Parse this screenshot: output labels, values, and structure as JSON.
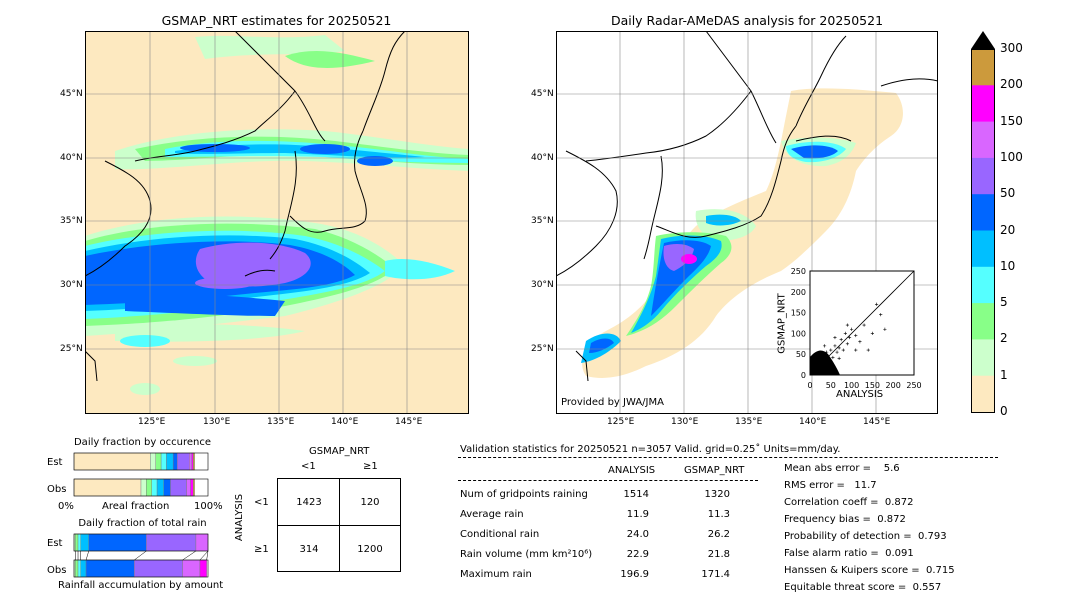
{
  "left_map": {
    "title": "GSMAP_NRT estimates for 20250521",
    "lat_labels": [
      "45°N",
      "40°N",
      "35°N",
      "30°N",
      "25°N"
    ],
    "lon_labels": [
      "125°E",
      "130°E",
      "135°E",
      "140°E",
      "145°E"
    ]
  },
  "right_map": {
    "title": "Daily Radar-AMeDAS analysis for 20250521",
    "lat_labels": [
      "45°N",
      "40°N",
      "35°N",
      "30°N",
      "25°N"
    ],
    "lon_labels": [
      "125°E",
      "130°E",
      "135°E",
      "140°E",
      "145°E"
    ],
    "credit": "Provided by JWA/JMA"
  },
  "colorbar": {
    "labels": [
      "300",
      "200",
      "150",
      "100",
      "50",
      "20",
      "10",
      "5",
      "2",
      "1",
      "0"
    ],
    "colors": [
      "#cc9a3c",
      "#ff00ff",
      "#d966ff",
      "#9966ff",
      "#0066ff",
      "#00bfff",
      "#55ffff",
      "#88ff88",
      "#ccffcc",
      "#fde9c0"
    ]
  },
  "scatter": {
    "xlabel": "ANALYSIS",
    "ylabel": "GSMAP_NRT",
    "ticks": [
      "0",
      "50",
      "100",
      "150",
      "200",
      "250"
    ]
  },
  "occurrence": {
    "title": "Daily fraction by occurence",
    "row_labels": [
      "Est",
      "Obs"
    ],
    "axis_left": "0%",
    "axis_mid": "Areal fraction",
    "axis_right": "100%"
  },
  "total_rain": {
    "title": "Daily fraction of total rain",
    "row_labels": [
      "Est",
      "Obs"
    ],
    "footer": "Rainfall accumulation by amount"
  },
  "contingency": {
    "title": "GSMAP_NRT",
    "col_labels": [
      "<1",
      "≥1"
    ],
    "row_title": "ANALYSIS",
    "row_labels": [
      "<1",
      "≥1"
    ],
    "cells": [
      [
        "1423",
        "120"
      ],
      [
        "314",
        "1200"
      ]
    ]
  },
  "validation": {
    "header": "Validation statistics for 20250521  n=3057 Valid. grid=0.25˚ Units=mm/day.",
    "col_analysis": "ANALYSIS",
    "col_gsmap": "GSMAP_NRT",
    "rows": [
      {
        "label": "Num of gridpoints raining",
        "analysis": "1514",
        "gsmap": "1320"
      },
      {
        "label": "Average rain",
        "analysis": "11.9",
        "gsmap": "11.3"
      },
      {
        "label": "Conditional rain",
        "analysis": "24.0",
        "gsmap": "26.2"
      },
      {
        "label": "Rain volume (mm km²10⁶)",
        "analysis": "22.9",
        "gsmap": "21.8"
      },
      {
        "label": "Maximum rain",
        "analysis": "196.9",
        "gsmap": "171.4"
      }
    ],
    "scores": [
      "Mean abs error =    5.6",
      "RMS error =   11.7",
      "Correlation coeff =  0.872",
      "Frequency bias =  0.872",
      "Probability of detection =  0.793",
      "False alarm ratio =  0.091",
      "Hanssen & Kuipers score =  0.715",
      "Equitable threat score =  0.557"
    ]
  },
  "chart_data": [
    {
      "type": "bar",
      "title": "Daily fraction by occurence",
      "categories": [
        "Est",
        "Obs"
      ],
      "series": [
        {
          "values": [
            0.57,
            0.5
          ]
        },
        {
          "values": [
            0.04,
            0.04
          ]
        },
        {
          "values": [
            0.04,
            0.04
          ]
        },
        {
          "values": [
            0.04,
            0.04
          ]
        },
        {
          "values": [
            0.05,
            0.05
          ]
        },
        {
          "values": [
            0.03,
            0.05
          ]
        },
        {
          "values": [
            0.09,
            0.12
          ]
        },
        {
          "values": [
            0.02,
            0.03
          ]
        },
        {
          "values": [
            0.01,
            0.02
          ]
        },
        {
          "values": [
            0.01,
            0.01
          ]
        }
      ],
      "colors": [
        "#fde9c0",
        "#ccffcc",
        "#88ff88",
        "#55ffff",
        "#00bfff",
        "#0066ff",
        "#9966ff",
        "#d966ff",
        "#ff00ff",
        "#cc9a3c"
      ]
    },
    {
      "type": "bar",
      "title": "Daily fraction of total rain",
      "categories": [
        "Est",
        "Obs"
      ],
      "series": [
        {
          "values": [
            0.01,
            0.01
          ]
        },
        {
          "values": [
            0.02,
            0.02
          ]
        },
        {
          "values": [
            0.02,
            0.02
          ]
        },
        {
          "values": [
            0.06,
            0.04
          ]
        },
        {
          "values": [
            0.43,
            0.36
          ]
        },
        {
          "values": [
            0.37,
            0.36
          ]
        },
        {
          "values": [
            0.09,
            0.13
          ]
        },
        {
          "values": [
            0.0,
            0.05
          ]
        }
      ],
      "colors": [
        "#ccffcc",
        "#88ff88",
        "#55ffff",
        "#00bfff",
        "#0066ff",
        "#9966ff",
        "#d966ff",
        "#ff00ff"
      ]
    },
    {
      "type": "scatter",
      "xlabel": "ANALYSIS",
      "ylabel": "GSMAP_NRT",
      "xlim": [
        0,
        250
      ],
      "ylim": [
        0,
        250
      ],
      "x": [
        5,
        8,
        10,
        12,
        15,
        18,
        20,
        22,
        25,
        28,
        30,
        35,
        40,
        45,
        50,
        55,
        60,
        65,
        70,
        75,
        80,
        85,
        90,
        95,
        100,
        110,
        120,
        130,
        140,
        150,
        160,
        170,
        180,
        15,
        30,
        40,
        50,
        60,
        70,
        90,
        110,
        20,
        35,
        45,
        25,
        10
      ],
      "y": [
        3,
        12,
        8,
        20,
        10,
        25,
        15,
        30,
        22,
        18,
        40,
        28,
        45,
        35,
        60,
        42,
        70,
        55,
        65,
        85,
        60,
        100,
        75,
        90,
        110,
        95,
        80,
        120,
        60,
        100,
        170,
        145,
        110,
        40,
        15,
        55,
        30,
        90,
        40,
        120,
        60,
        50,
        70,
        20,
        35,
        30
      ]
    }
  ]
}
